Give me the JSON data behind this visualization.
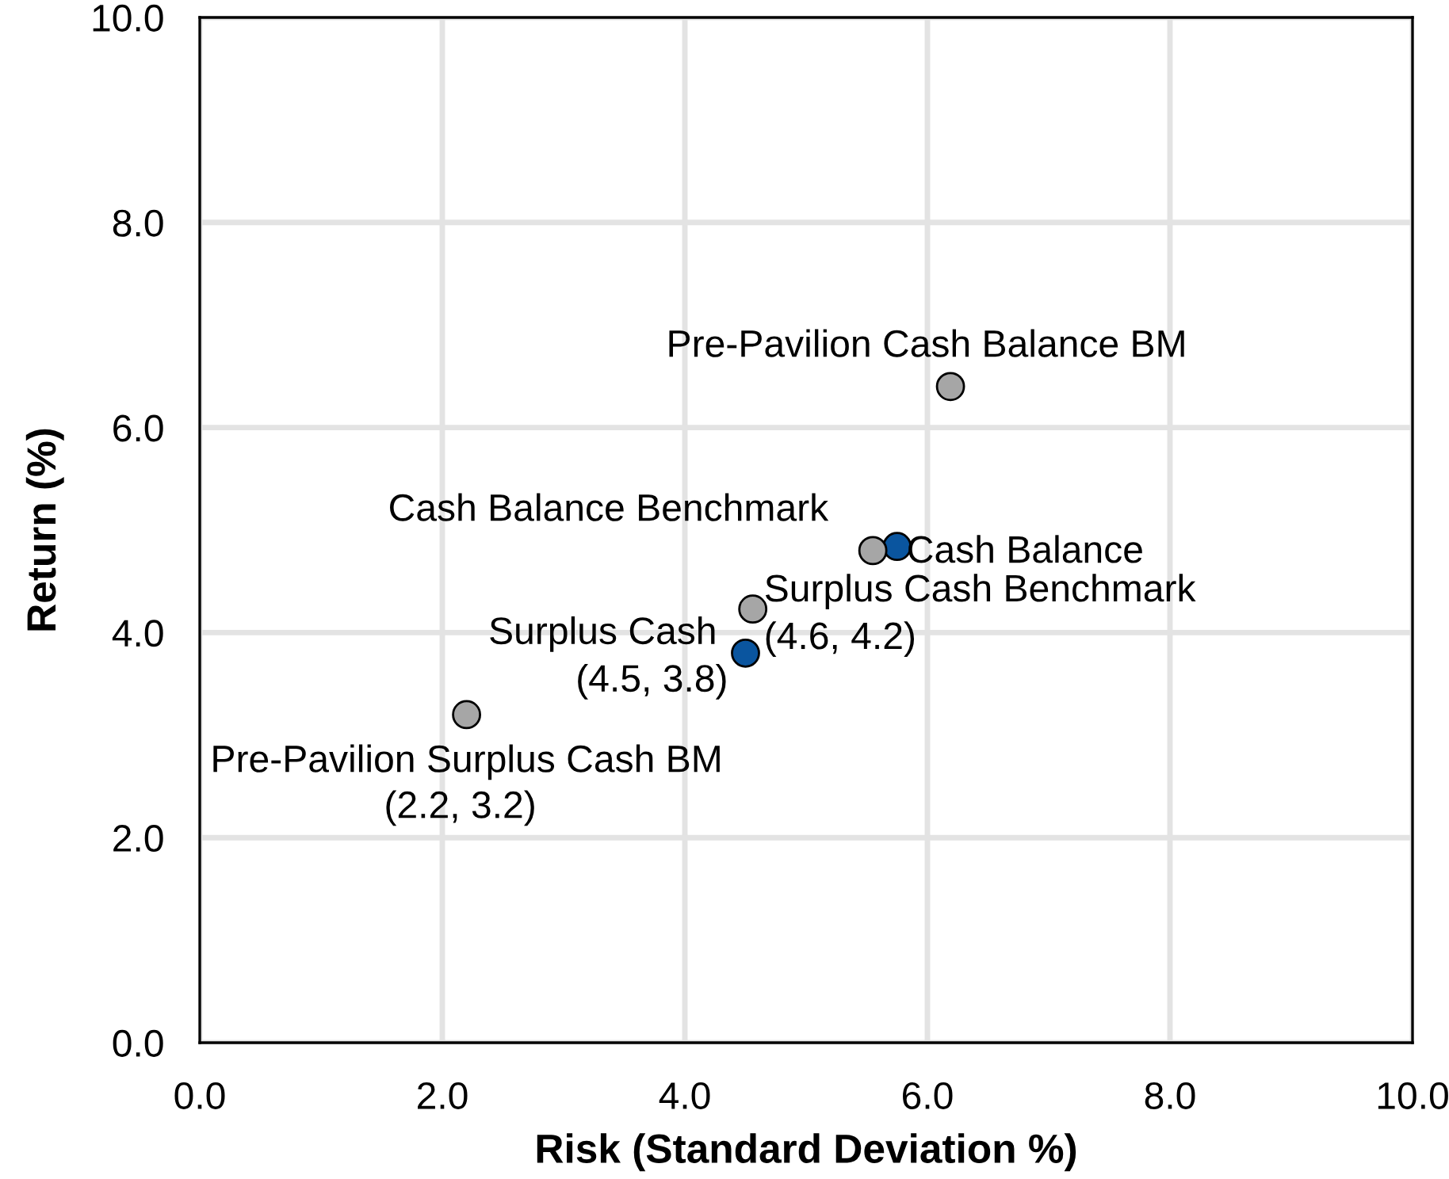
{
  "chart_data": {
    "type": "scatter",
    "xlabel": "Risk (Standard Deviation %)",
    "ylabel": "Return (%)",
    "xlim": [
      0,
      10
    ],
    "ylim": [
      0,
      10
    ],
    "xticks": [
      {
        "value": 0,
        "label": "0.0"
      },
      {
        "value": 2,
        "label": "2.0"
      },
      {
        "value": 4,
        "label": "4.0"
      },
      {
        "value": 6,
        "label": "6.0"
      },
      {
        "value": 8,
        "label": "8.0"
      },
      {
        "value": 10,
        "label": "10.0"
      }
    ],
    "yticks": [
      {
        "value": 0,
        "label": "0.0"
      },
      {
        "value": 2,
        "label": "2.0"
      },
      {
        "value": 4,
        "label": "4.0"
      },
      {
        "value": 6,
        "label": "6.0"
      },
      {
        "value": 8,
        "label": "8.0"
      },
      {
        "value": 10,
        "label": "10.0"
      }
    ],
    "grid": true,
    "legend": false,
    "marker": "circle",
    "series": [
      {
        "name": "Surplus Cash",
        "color": "#0a559f",
        "x": [
          4.5
        ],
        "values": [
          3.8
        ],
        "value_labels": [
          "(4.5, 3.8)"
        ]
      },
      {
        "name": "Cash Balance",
        "color": "#0a559f",
        "x": [
          5.75
        ],
        "values": [
          4.84
        ]
      },
      {
        "name": "Surplus Cash Benchmark",
        "color": "#a6a6a6",
        "x": [
          4.56
        ],
        "values": [
          4.23
        ],
        "value_labels": [
          "(4.6, 4.2)"
        ]
      },
      {
        "name": "Cash Balance Benchmark",
        "color": "#a6a6a6",
        "x": [
          5.55
        ],
        "values": [
          4.8
        ]
      },
      {
        "name": "Pre-Pavilion Surplus Cash BM",
        "color": "#a6a6a6",
        "x": [
          2.2
        ],
        "values": [
          3.2
        ],
        "value_labels": [
          "(2.2, 3.2)"
        ]
      },
      {
        "name": "Pre-Pavilion Cash Balance BM",
        "color": "#a6a6a6",
        "x": [
          6.19
        ],
        "values": [
          6.4
        ]
      }
    ]
  }
}
